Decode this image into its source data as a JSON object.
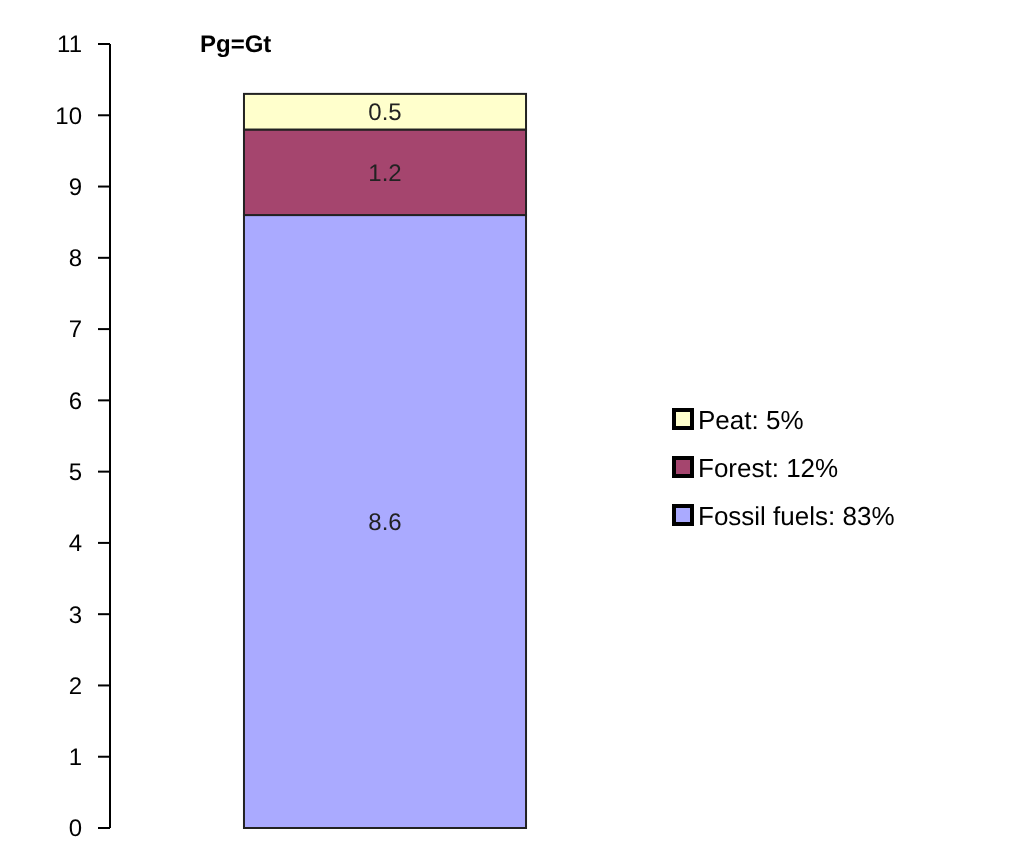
{
  "chart_data": {
    "type": "bar",
    "stacked": true,
    "ylabel": "Pg=Gt",
    "categories": [
      null
    ],
    "series": [
      {
        "name": "Fossil fuels: 83%",
        "color": "#aaaaff",
        "values": [
          8.6
        ]
      },
      {
        "name": "Forest: 12%",
        "color": "#a5456e",
        "values": [
          1.2
        ]
      },
      {
        "name": "Peat: 5%",
        "color": "#ffffcc",
        "values": [
          0.5
        ]
      }
    ],
    "ylim": [
      0,
      11
    ],
    "yticks": [
      0,
      1,
      2,
      3,
      4,
      5,
      6,
      7,
      8,
      9,
      10,
      11
    ],
    "data_labels": true,
    "legend": "right"
  }
}
